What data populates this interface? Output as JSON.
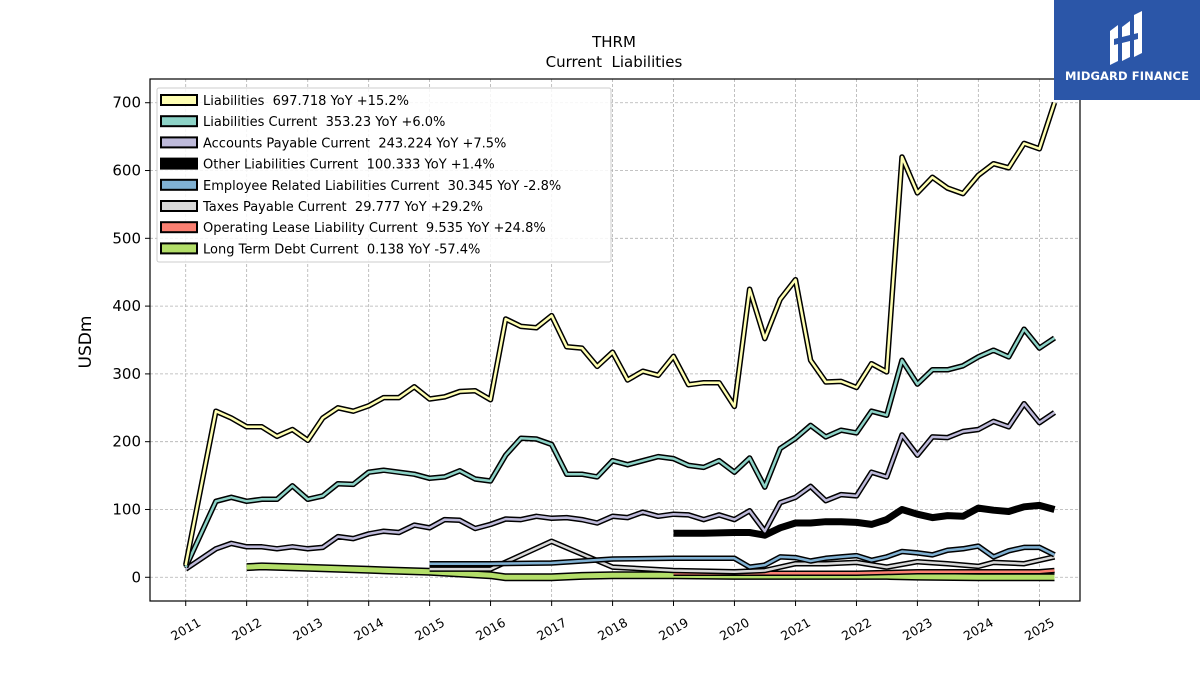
{
  "brand": {
    "name": "MIDGARD FINANCE",
    "color": "#2b56a8"
  },
  "chart_data": {
    "type": "line",
    "title": "THRM",
    "subtitle": "Current  Liabilities",
    "ylabel": "USDm",
    "xlabel": "",
    "xlim": [
      "2010-06-01",
      "2025-09-01"
    ],
    "ylim": [
      -35,
      735
    ],
    "yticks": [
      0,
      100,
      200,
      300,
      400,
      500,
      600,
      700
    ],
    "xticks": [
      "2011",
      "2012",
      "2013",
      "2014",
      "2015",
      "2016",
      "2017",
      "2018",
      "2019",
      "2020",
      "2021",
      "2022",
      "2023",
      "2024",
      "2025"
    ],
    "grid": true,
    "legend_position": "top-left",
    "series": [
      {
        "name": "Liabilities",
        "legend": "Liabilities  697.718 YoY +15.2%",
        "color": "#ffffb3",
        "lw": 2.5,
        "x": [
          "2011-01-01",
          "2011-07-01",
          "2011-10-01",
          "2012-01-01",
          "2012-04-01",
          "2012-07-01",
          "2012-10-01",
          "2013-01-01",
          "2013-04-01",
          "2013-07-01",
          "2013-10-01",
          "2014-01-01",
          "2014-04-01",
          "2014-07-01",
          "2014-10-01",
          "2015-01-01",
          "2015-04-01",
          "2015-07-01",
          "2015-10-01",
          "2016-01-01",
          "2016-04-01",
          "2016-07-01",
          "2016-10-01",
          "2017-01-01",
          "2017-04-01",
          "2017-07-01",
          "2017-10-01",
          "2018-01-01",
          "2018-04-01",
          "2018-07-01",
          "2018-10-01",
          "2019-01-01",
          "2019-04-01",
          "2019-07-01",
          "2019-10-01",
          "2020-01-01",
          "2020-04-01",
          "2020-07-01",
          "2020-10-01",
          "2021-01-01",
          "2021-04-01",
          "2021-07-01",
          "2021-10-01",
          "2022-01-01",
          "2022-04-01",
          "2022-07-01",
          "2022-10-01",
          "2023-01-01",
          "2023-04-01",
          "2023-07-01",
          "2023-10-01",
          "2024-01-01",
          "2024-04-01",
          "2024-07-01",
          "2024-10-01",
          "2025-01-01",
          "2025-04-01"
        ],
        "y": [
          18,
          245,
          235,
          222,
          222,
          208,
          218,
          202,
          235,
          250,
          245,
          253,
          265,
          265,
          281,
          263,
          266,
          274,
          275,
          262,
          381,
          370,
          368,
          386,
          340,
          338,
          311,
          332,
          291,
          304,
          298,
          326,
          284,
          287,
          287,
          252,
          425,
          352,
          410,
          439,
          320,
          288,
          289,
          280,
          315,
          303,
          620,
          567,
          590,
          574,
          566,
          593,
          610,
          604,
          640,
          632,
          700
        ]
      },
      {
        "name": "Liabilities Current",
        "legend": "Liabilities Current  353.23 YoY +6.0%",
        "color": "#8dd3c7",
        "lw": 2.5,
        "x": [
          "2011-01-01",
          "2011-07-01",
          "2011-10-01",
          "2012-01-01",
          "2012-04-01",
          "2012-07-01",
          "2012-10-01",
          "2013-01-01",
          "2013-04-01",
          "2013-07-01",
          "2013-10-01",
          "2014-01-01",
          "2014-04-01",
          "2014-07-01",
          "2014-10-01",
          "2015-01-01",
          "2015-04-01",
          "2015-07-01",
          "2015-10-01",
          "2016-01-01",
          "2016-04-01",
          "2016-07-01",
          "2016-10-01",
          "2017-01-01",
          "2017-04-01",
          "2017-07-01",
          "2017-10-01",
          "2018-01-01",
          "2018-04-01",
          "2018-07-01",
          "2018-10-01",
          "2019-01-01",
          "2019-04-01",
          "2019-07-01",
          "2019-10-01",
          "2020-01-01",
          "2020-04-01",
          "2020-07-01",
          "2020-10-01",
          "2021-01-01",
          "2021-04-01",
          "2021-07-01",
          "2021-10-01",
          "2022-01-01",
          "2022-04-01",
          "2022-07-01",
          "2022-10-01",
          "2023-01-01",
          "2023-04-01",
          "2023-07-01",
          "2023-10-01",
          "2024-01-01",
          "2024-04-01",
          "2024-07-01",
          "2024-10-01",
          "2025-01-01",
          "2025-04-01"
        ],
        "y": [
          15,
          112,
          118,
          112,
          115,
          115,
          135,
          115,
          120,
          138,
          137,
          155,
          158,
          155,
          152,
          146,
          148,
          157,
          145,
          142,
          180,
          205,
          204,
          196,
          152,
          152,
          148,
          172,
          166,
          172,
          178,
          175,
          165,
          162,
          172,
          155,
          176,
          133,
          190,
          205,
          224,
          207,
          217,
          213,
          245,
          239,
          320,
          285,
          306,
          306,
          312,
          325,
          335,
          325,
          366,
          338,
          353
        ]
      },
      {
        "name": "Accounts Payable Current",
        "legend": "Accounts Payable Current  243.224 YoY +7.5%",
        "color": "#bebada",
        "lw": 2.5,
        "x": [
          "2011-01-01",
          "2011-07-01",
          "2011-10-01",
          "2012-01-01",
          "2012-04-01",
          "2012-07-01",
          "2012-10-01",
          "2013-01-01",
          "2013-04-01",
          "2013-07-01",
          "2013-10-01",
          "2014-01-01",
          "2014-04-01",
          "2014-07-01",
          "2014-10-01",
          "2015-01-01",
          "2015-04-01",
          "2015-07-01",
          "2015-10-01",
          "2016-01-01",
          "2016-04-01",
          "2016-07-01",
          "2016-10-01",
          "2017-01-01",
          "2017-04-01",
          "2017-07-01",
          "2017-10-01",
          "2018-01-01",
          "2018-04-01",
          "2018-07-01",
          "2018-10-01",
          "2019-01-01",
          "2019-04-01",
          "2019-07-01",
          "2019-10-01",
          "2020-01-01",
          "2020-04-01",
          "2020-07-01",
          "2020-10-01",
          "2021-01-01",
          "2021-04-01",
          "2021-07-01",
          "2021-10-01",
          "2022-01-01",
          "2022-04-01",
          "2022-07-01",
          "2022-10-01",
          "2023-01-01",
          "2023-04-01",
          "2023-07-01",
          "2023-10-01",
          "2024-01-01",
          "2024-04-01",
          "2024-07-01",
          "2024-10-01",
          "2025-01-01",
          "2025-04-01"
        ],
        "y": [
          12,
          42,
          50,
          45,
          45,
          42,
          45,
          42,
          44,
          60,
          57,
          64,
          68,
          66,
          77,
          73,
          85,
          84,
          72,
          78,
          86,
          85,
          90,
          87,
          88,
          85,
          80,
          90,
          88,
          96,
          90,
          93,
          92,
          85,
          92,
          85,
          98,
          68,
          110,
          118,
          134,
          113,
          122,
          120,
          155,
          148,
          210,
          180,
          207,
          206,
          215,
          218,
          230,
          222,
          256,
          228,
          243
        ]
      },
      {
        "name": "Other Liabilities Current",
        "legend": "Other Liabilities Current  100.333 YoY +1.4%",
        "color": "#000000",
        "lw": 6,
        "x": [
          "2019-01-01",
          "2019-07-01",
          "2020-01-01",
          "2020-04-01",
          "2020-07-01",
          "2020-10-01",
          "2021-01-01",
          "2021-04-01",
          "2021-07-01",
          "2021-10-01",
          "2022-01-01",
          "2022-04-01",
          "2022-07-01",
          "2022-10-01",
          "2023-01-01",
          "2023-04-01",
          "2023-07-01",
          "2023-10-01",
          "2024-01-01",
          "2024-04-01",
          "2024-07-01",
          "2024-10-01",
          "2025-01-01",
          "2025-04-01"
        ],
        "y": [
          65,
          65,
          66,
          66,
          62,
          73,
          80,
          80,
          82,
          82,
          81,
          78,
          85,
          100,
          93,
          88,
          91,
          90,
          102,
          99,
          97,
          104,
          106,
          100
        ]
      },
      {
        "name": "Employee Related Liabilities Current",
        "legend": "Employee Related Liabilities Current  30.345 YoY -2.8%",
        "color": "#80b1d3",
        "lw": 2.5,
        "x": [
          "2015-01-01",
          "2016-01-01",
          "2017-01-01",
          "2018-01-01",
          "2019-01-01",
          "2020-01-01",
          "2020-04-01",
          "2020-07-01",
          "2020-10-01",
          "2021-01-01",
          "2021-04-01",
          "2021-07-01",
          "2021-10-01",
          "2022-01-01",
          "2022-04-01",
          "2022-07-01",
          "2022-10-01",
          "2023-01-01",
          "2023-04-01",
          "2023-07-01",
          "2023-10-01",
          "2024-01-01",
          "2024-04-01",
          "2024-07-01",
          "2024-10-01",
          "2025-01-01",
          "2025-04-01"
        ],
        "y": [
          20,
          20,
          21,
          27,
          28,
          28,
          15,
          18,
          30,
          29,
          24,
          28,
          30,
          32,
          25,
          30,
          38,
          36,
          33,
          40,
          42,
          46,
          30,
          39,
          44,
          44,
          33
        ]
      },
      {
        "name": "Taxes Payable Current",
        "legend": "Taxes Payable Current  29.777 YoY +29.2%",
        "color": "#d9d9d9",
        "lw": 2.5,
        "x": [
          "2015-01-01",
          "2016-01-01",
          "2017-01-01",
          "2018-01-01",
          "2019-01-01",
          "2020-01-01",
          "2020-07-01",
          "2021-01-01",
          "2021-07-01",
          "2022-01-01",
          "2022-07-01",
          "2023-01-01",
          "2023-07-01",
          "2024-01-01",
          "2024-04-01",
          "2024-10-01",
          "2025-04-01"
        ],
        "y": [
          12,
          12,
          53,
          15,
          10,
          8,
          10,
          20,
          20,
          22,
          15,
          23,
          20,
          16,
          22,
          20,
          30
        ]
      },
      {
        "name": "Operating Lease Liability Current",
        "legend": "Operating Lease Liability Current  9.535 YoY +24.8%",
        "color": "#fb8072",
        "lw": 2.5,
        "x": [
          "2019-01-01",
          "2020-01-01",
          "2021-01-01",
          "2022-01-01",
          "2022-07-01",
          "2023-01-01",
          "2023-07-01",
          "2024-01-01",
          "2024-07-01",
          "2025-01-01",
          "2025-04-01"
        ],
        "y": [
          6,
          6,
          6,
          6,
          7,
          8,
          8,
          8,
          8,
          8,
          10
        ]
      },
      {
        "name": "Long Term Debt Current",
        "legend": "Long Term Debt Current  0.138 YoY -57.4%",
        "color": "#b3de69",
        "lw": 5,
        "x": [
          "2012-01-01",
          "2012-04-01",
          "2013-01-01",
          "2014-01-01",
          "2015-01-01",
          "2016-01-01",
          "2016-04-01",
          "2017-01-01",
          "2017-07-01",
          "2018-01-01",
          "2019-01-01",
          "2020-01-01",
          "2021-01-01",
          "2022-01-01",
          "2022-07-01",
          "2023-01-01",
          "2024-01-01",
          "2025-04-01"
        ],
        "y": [
          15,
          16,
          14,
          11,
          8,
          3,
          0,
          0,
          2,
          3,
          3,
          2,
          2,
          2,
          2,
          1,
          0,
          0
        ]
      }
    ]
  }
}
